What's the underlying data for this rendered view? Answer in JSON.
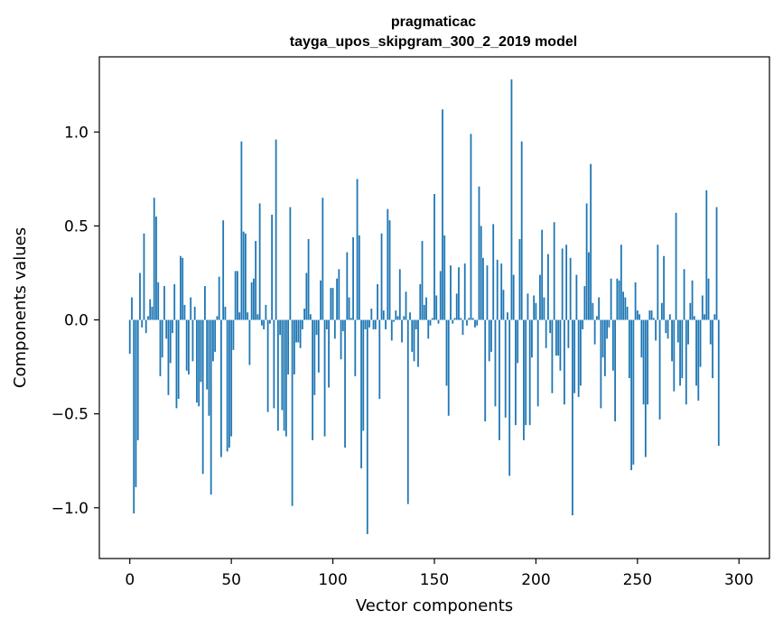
{
  "chart_data": {
    "type": "bar",
    "title": "pragmaticac",
    "subtitle": "tayga_upos_skipgram_300_2_2019 model",
    "xlabel": "Vector components",
    "ylabel": "Components values",
    "xlim": [
      -15,
      315
    ],
    "ylim": [
      -1.27,
      1.4
    ],
    "xticks": [
      0,
      50,
      100,
      150,
      200,
      250,
      300
    ],
    "yticks": [
      -1.0,
      -0.5,
      0.0,
      0.5,
      1.0
    ],
    "ytick_labels": [
      "−1.0",
      "−0.5",
      "0.0",
      "0.5",
      "1.0"
    ],
    "bar_color": "#1f77b4",
    "grid": false,
    "values": [
      -0.18,
      0.12,
      -1.03,
      -0.89,
      -0.64,
      0.25,
      -0.04,
      0.46,
      -0.07,
      0.02,
      0.11,
      0.07,
      0.65,
      0.55,
      0.2,
      -0.3,
      -0.2,
      0.18,
      -0.1,
      -0.4,
      -0.23,
      -0.07,
      0.19,
      -0.47,
      -0.42,
      0.34,
      0.33,
      0.08,
      -0.27,
      -0.29,
      0.12,
      -0.22,
      0.07,
      -0.44,
      -0.46,
      -0.33,
      -0.82,
      0.18,
      -0.37,
      -0.51,
      -0.93,
      -0.22,
      -0.17,
      0.02,
      0.23,
      -0.73,
      0.53,
      0.07,
      -0.7,
      -0.68,
      -0.62,
      -0.16,
      0.26,
      0.26,
      0.04,
      0.95,
      0.47,
      0.46,
      0.04,
      -0.24,
      0.2,
      0.22,
      0.42,
      0.03,
      0.62,
      -0.03,
      -0.05,
      0.08,
      -0.49,
      -0.02,
      0.56,
      -0.47,
      0.96,
      -0.59,
      -0.08,
      -0.48,
      -0.59,
      -0.62,
      -0.29,
      0.6,
      -0.99,
      -0.29,
      -0.12,
      -0.12,
      -0.15,
      -0.05,
      0.06,
      0.25,
      0.43,
      0.03,
      -0.64,
      -0.4,
      -0.08,
      -0.28,
      0.21,
      0.65,
      -0.62,
      -0.05,
      -0.36,
      0.17,
      0.17,
      -0.1,
      0.22,
      0.27,
      -0.21,
      -0.06,
      -0.68,
      0.36,
      0.12,
      0.01,
      0.44,
      -0.3,
      0.75,
      0.45,
      -0.79,
      -0.59,
      -0.05,
      -1.14,
      -0.04,
      0.06,
      -0.05,
      -0.05,
      0.19,
      -0.42,
      0.46,
      0.05,
      -0.05,
      0.59,
      0.53,
      -0.11,
      -0.01,
      0.05,
      0.02,
      0.27,
      -0.12,
      0.02,
      0.15,
      -0.98,
      0.04,
      -0.17,
      -0.22,
      -0.05,
      -0.25,
      0.19,
      0.42,
      0.08,
      0.12,
      -0.1,
      -0.03,
      0.01,
      0.67,
      0.13,
      -0.02,
      0.26,
      1.12,
      0.45,
      -0.35,
      -0.51,
      0.29,
      -0.02,
      0.01,
      0.14,
      0.28,
      0.01,
      -0.08,
      0.3,
      -0.03,
      0.01,
      0.99,
      0.01,
      -0.04,
      -0.03,
      0.71,
      0.5,
      0.33,
      -0.54,
      0.29,
      -0.22,
      -0.17,
      0.51,
      -0.46,
      0.32,
      -0.64,
      0.3,
      0.16,
      -0.52,
      0.04,
      -0.83,
      1.28,
      0.24,
      -0.56,
      -0.23,
      0.43,
      0.95,
      -0.64,
      -0.56,
      0.14,
      -0.56,
      -0.2,
      0.13,
      0.09,
      -0.46,
      0.24,
      0.48,
      0.12,
      -0.15,
      0.35,
      -0.07,
      -0.39,
      0.52,
      -0.19,
      -0.19,
      -0.27,
      0.38,
      -0.45,
      0.4,
      -0.15,
      0.33,
      -1.04,
      -0.39,
      0.24,
      -0.41,
      -0.35,
      -0.05,
      0.18,
      0.62,
      0.36,
      0.83,
      0.09,
      -0.13,
      0.02,
      0.12,
      -0.47,
      -0.2,
      -0.3,
      -0.1,
      -0.04,
      0.22,
      -0.27,
      -0.54,
      0.22,
      0.21,
      0.4,
      0.15,
      0.12,
      0.07,
      -0.31,
      -0.8,
      -0.77,
      0.2,
      0.05,
      0.03,
      -0.2,
      -0.45,
      -0.73,
      -0.45,
      0.05,
      0.05,
      0.01,
      -0.11,
      0.4,
      -0.53,
      0.09,
      0.34,
      -0.07,
      -0.1,
      0.03,
      -0.22,
      -0.38,
      0.57,
      -0.12,
      -0.35,
      -0.31,
      0.27,
      -0.45,
      -0.13,
      0.09,
      0.21,
      0.02,
      -0.35,
      -0.43,
      -0.25,
      0.13,
      0.03,
      0.69,
      0.22,
      -0.13,
      -0.31,
      0.03,
      0.6,
      -0.67
    ]
  }
}
